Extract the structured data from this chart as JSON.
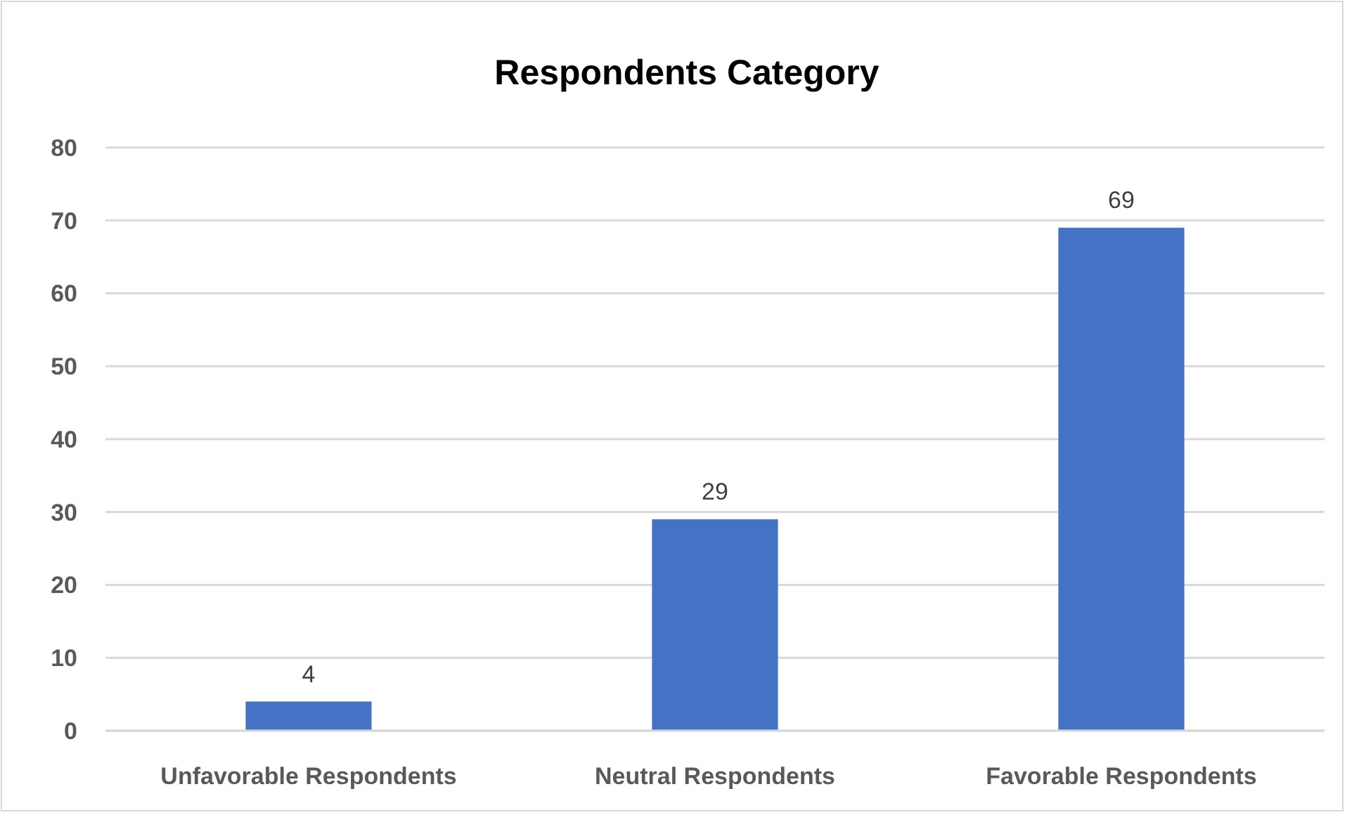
{
  "chart_data": {
    "type": "bar",
    "title": "Respondents Category",
    "categories": [
      "Unfavorable Respondents",
      "Neutral Respondents",
      "Favorable Respondents"
    ],
    "values": [
      4,
      29,
      69
    ],
    "color": "#4472c4",
    "ylim": [
      0,
      80
    ],
    "yticks": [
      0,
      10,
      20,
      30,
      40,
      50,
      60,
      70,
      80
    ],
    "grid": "y",
    "data_labels": true
  }
}
